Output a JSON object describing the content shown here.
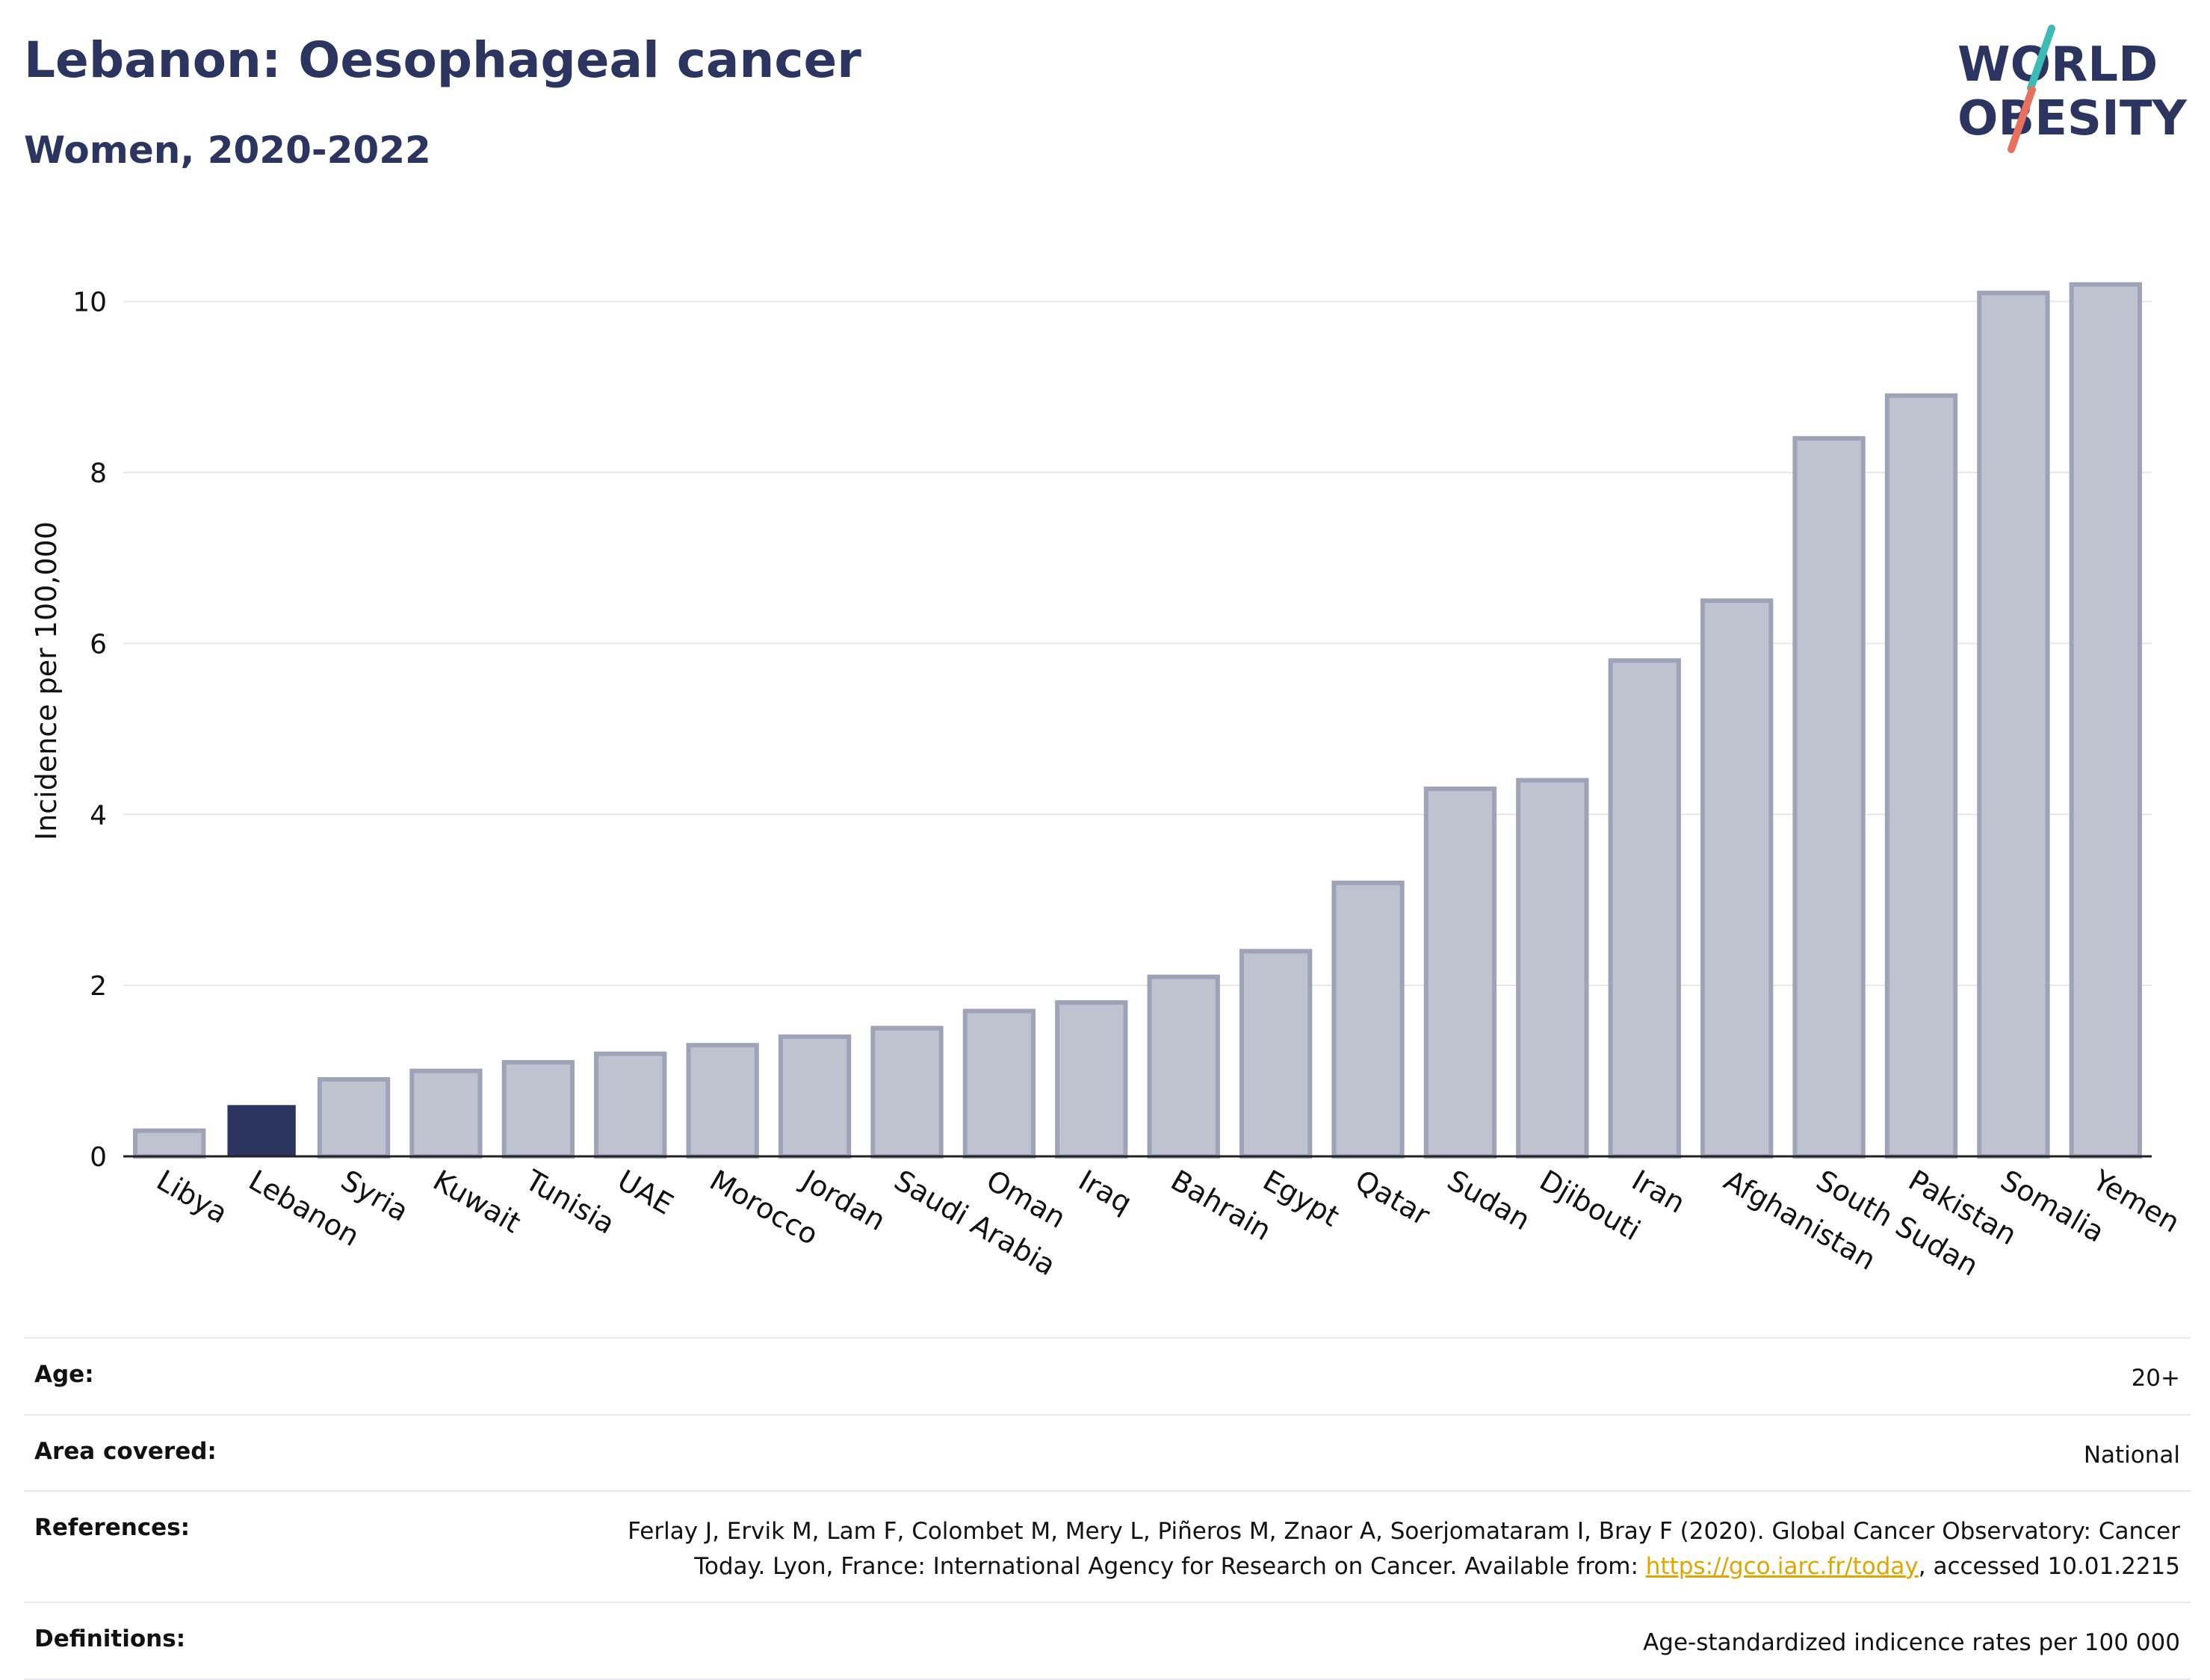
{
  "header": {
    "title": "Lebanon: Oesophageal cancer",
    "subtitle": "Women, 2020-2022"
  },
  "logo": {
    "line1": "WORLD",
    "line2": "OBESITY",
    "text_color": "#2b3560",
    "slash_colors": [
      "#3cbcb4",
      "#e8705f"
    ]
  },
  "colors": {
    "highlight_bar": "#2b3560",
    "other_bar_fill": "#bfc3d0",
    "other_bar_stroke": "#9ea3b8",
    "gridline": "#e6e6ec"
  },
  "chart_data": {
    "type": "bar",
    "title": "",
    "xlabel": "",
    "ylabel": "Incidence per 100,000",
    "ylim": [
      0,
      10.6
    ],
    "yticks": [
      0,
      2,
      4,
      6,
      8,
      10
    ],
    "grid": true,
    "highlight": "Lebanon",
    "categories": [
      "Libya",
      "Lebanon",
      "Syria",
      "Kuwait",
      "Tunisia",
      "UAE",
      "Morocco",
      "Jordan",
      "Saudi Arabia",
      "Oman",
      "Iraq",
      "Bahrain",
      "Egypt",
      "Qatar",
      "Sudan",
      "Djibouti",
      "Iran",
      "Afghanistan",
      "South Sudan",
      "Pakistan",
      "Somalia",
      "Yemen"
    ],
    "values": [
      0.3,
      0.6,
      0.9,
      1.0,
      1.1,
      1.2,
      1.3,
      1.4,
      1.5,
      1.7,
      1.8,
      2.1,
      2.4,
      3.2,
      4.3,
      4.4,
      5.8,
      6.5,
      8.4,
      8.9,
      10.1,
      10.2
    ]
  },
  "info": {
    "age_label": "Age:",
    "age_value": "20+",
    "area_label": "Area covered:",
    "area_value": "National",
    "references_label": "References:",
    "references_line1": "Ferlay J, Ervik M, Lam F, Colombet M, Mery L, Piñeros M, Znaor A, Soerjomataram I, Bray F (2020). Global Cancer Observatory: Cancer",
    "references_line2_pre": "Today. Lyon, France: International Agency for Research on Cancer. Available from: ",
    "references_link": "https://gco.iarc.fr/today",
    "references_line2_post": ", accessed 10.01.2215",
    "definitions_label": "Definitions:",
    "definitions_value": "Age-standardized indicence rates per 100 000"
  }
}
